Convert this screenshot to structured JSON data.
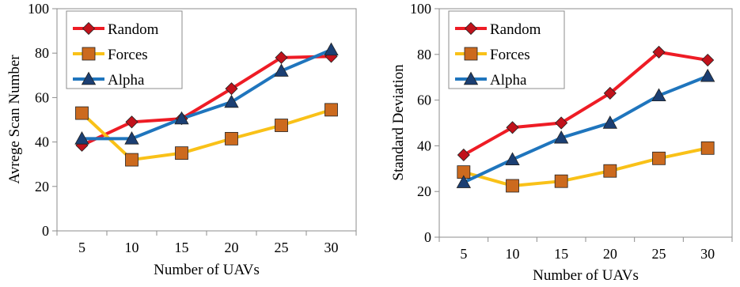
{
  "colors": {
    "Random": "#ee1c25",
    "Forces": "#f9c118",
    "Alpha": "#1f75bd",
    "marker_Random": "#c1121b",
    "marker_Forces": "#cc6a1e",
    "marker_Alpha": "#1b3f73"
  },
  "chart_data": [
    {
      "type": "line",
      "categories": [
        "5",
        "10",
        "15",
        "20",
        "25",
        "30"
      ],
      "xlabel": "Number of UAVs",
      "ylabel": "Avrege Scan Number",
      "ylim": [
        0,
        100
      ],
      "yticks": [
        "0",
        "20",
        "40",
        "60",
        "80",
        "100"
      ],
      "grid": false,
      "legend": "top-left",
      "series": [
        {
          "name": "Random",
          "marker": "diamond",
          "values": [
            38.5,
            49,
            50.5,
            64,
            78,
            78.5
          ]
        },
        {
          "name": "Forces",
          "marker": "square",
          "values": [
            53,
            32,
            35,
            41.5,
            47.5,
            54.5
          ]
        },
        {
          "name": "Alpha",
          "marker": "triangle",
          "values": [
            41.5,
            41.5,
            50.5,
            58,
            72,
            81.5
          ]
        }
      ]
    },
    {
      "type": "line",
      "categories": [
        "5",
        "10",
        "15",
        "20",
        "25",
        "30"
      ],
      "xlabel": "Number of UAVs",
      "ylabel": "Standard Deviation",
      "ylim": [
        0,
        100
      ],
      "yticks": [
        "0",
        "20",
        "40",
        "60",
        "80",
        "100"
      ],
      "grid": false,
      "legend": "top-left",
      "series": [
        {
          "name": "Random",
          "marker": "diamond",
          "values": [
            36,
            48,
            50,
            63,
            81,
            77.5
          ]
        },
        {
          "name": "Forces",
          "marker": "square",
          "values": [
            28.5,
            22.5,
            24.5,
            29,
            34.5,
            39
          ]
        },
        {
          "name": "Alpha",
          "marker": "triangle",
          "values": [
            24,
            34,
            43.5,
            50,
            62,
            70.5
          ]
        }
      ]
    }
  ]
}
